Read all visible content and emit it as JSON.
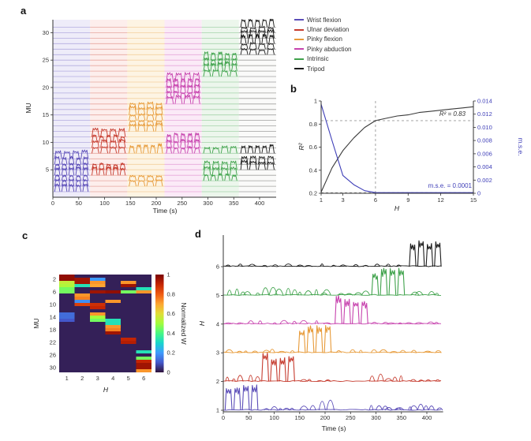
{
  "colors": {
    "wrist_flexion": "#5b4db8",
    "ulnar_deviation": "#c63b2e",
    "pinky_flexion": "#e79a38",
    "pinky_abduction": "#c743ae",
    "intrinsic": "#3fa24b",
    "tripod": "#1b1b1b",
    "mse_blue": "#3f3fb8",
    "axis": "#333333"
  },
  "chart_data": [
    {
      "id": "a",
      "type": "line",
      "panel_label": "a",
      "title": "",
      "xlabel": "Time (s)",
      "ylabel": "MU",
      "xticks": [
        0,
        50,
        100,
        150,
        200,
        250,
        300,
        350,
        400
      ],
      "yticks": [
        5,
        10,
        15,
        20,
        25,
        30
      ],
      "xlim": [
        0,
        432
      ],
      "mu_count": 31,
      "legend_position": "top-right-outside",
      "legend": [
        {
          "label": "Wrist flexion",
          "color": "#5b4db8"
        },
        {
          "label": "Ulnar deviation",
          "color": "#c63b2e"
        },
        {
          "label": "Pinky flexion",
          "color": "#e79a38"
        },
        {
          "label": "Pinky abduction",
          "color": "#c743ae"
        },
        {
          "label": "Intrinsic",
          "color": "#3fa24b"
        },
        {
          "label": "Tripod",
          "color": "#1b1b1b"
        }
      ],
      "segments": [
        {
          "gesture": "Wrist flexion",
          "t0": 0,
          "t1": 72,
          "color": "#5b4db8",
          "band": "#eeecf9",
          "active_mus": [
            1,
            2,
            3,
            4,
            5,
            6,
            7
          ]
        },
        {
          "gesture": "Ulnar deviation",
          "t0": 72,
          "t1": 144,
          "color": "#c63b2e",
          "band": "#fdeeec",
          "active_mus": [
            4,
            5,
            8,
            9,
            10,
            11
          ]
        },
        {
          "gesture": "Pinky flexion",
          "t0": 144,
          "t1": 216,
          "color": "#e79a38",
          "band": "#fdf4e3",
          "active_mus": [
            2,
            3,
            8,
            12,
            13,
            14,
            15,
            16
          ]
        },
        {
          "gesture": "Pinky abduction",
          "t0": 216,
          "t1": 288,
          "color": "#c743ae",
          "band": "#fbeaf7",
          "active_mus": [
            8,
            9,
            10,
            17,
            18,
            19,
            20,
            21
          ]
        },
        {
          "gesture": "Intrinsic",
          "t0": 288,
          "t1": 360,
          "color": "#3fa24b",
          "band": "#ecf6ec",
          "active_mus": [
            3,
            4,
            5,
            8,
            22,
            23,
            24,
            25
          ]
        },
        {
          "gesture": "Tripod",
          "t0": 360,
          "t1": 432,
          "color": "#1b1b1b",
          "band": "#fafaf9",
          "active_mus": [
            5,
            6,
            8,
            26,
            27,
            28,
            29,
            30,
            31
          ]
        }
      ]
    },
    {
      "id": "b",
      "type": "line",
      "panel_label": "b",
      "title": "",
      "xlabel": "H",
      "ylabel_left": "R²",
      "ylabel_right": "m.s.e.",
      "xticks": [
        1,
        3,
        6,
        9,
        12,
        15
      ],
      "yticks_left": [
        "0.2",
        "0.4",
        "0.6",
        "0.8",
        "1"
      ],
      "yticks_right": [
        "0",
        "0.002",
        "0.004",
        "0.006",
        "0.008",
        "0.010",
        "0.012",
        "0.014"
      ],
      "xlim": [
        1,
        15
      ],
      "ylim_left": [
        0.2,
        1
      ],
      "ylim_right": [
        0,
        0.014
      ],
      "x": [
        1,
        2,
        3,
        4,
        5,
        6,
        7,
        8,
        9,
        10,
        11,
        12,
        13,
        14,
        15
      ],
      "series": [
        {
          "name": "R²",
          "axis": "left",
          "color": "#3a3a3a",
          "values": [
            0.21,
            0.42,
            0.57,
            0.68,
            0.77,
            0.83,
            0.85,
            0.87,
            0.88,
            0.9,
            0.91,
            0.92,
            0.93,
            0.94,
            0.95
          ]
        },
        {
          "name": "m.s.e.",
          "axis": "right",
          "color": "#3f3fb8",
          "values": [
            0.0135,
            0.008,
            0.0027,
            0.0013,
            0.0004,
            0.0001,
            0.0001,
            0.0001,
            0.0001,
            0.0001,
            0.0001,
            0.0001,
            0.0001,
            0.0001,
            0.0001
          ]
        }
      ],
      "annotations": [
        {
          "text": "R² = 0.83",
          "color": "#3a3a3a"
        },
        {
          "text": "m.s.e. = 0.0001",
          "color": "#3f3fb8"
        }
      ],
      "dashed_lines": {
        "vline_H": 6,
        "hline_r2": 0.83,
        "hline_mse": 0.0001
      }
    },
    {
      "id": "c",
      "type": "heatmap",
      "panel_label": "c",
      "title": "",
      "xlabel": "H",
      "ylabel": "MU",
      "colorbar_label": "Normalized W",
      "xticks": [
        1,
        2,
        3,
        4,
        5,
        6
      ],
      "yticks": [
        2,
        6,
        10,
        14,
        18,
        22,
        26,
        30
      ],
      "colorbar_ticks": [
        "0",
        "0.2",
        "0.4",
        "0.6",
        "0.8",
        "1"
      ],
      "rows": 31,
      "cols": 6,
      "colormap": "turbo",
      "cells": [
        [
          1,
          1,
          0.97
        ],
        [
          2,
          1,
          0.97
        ],
        [
          3,
          1,
          0.55
        ],
        [
          4,
          1,
          0.52
        ],
        [
          5,
          1,
          0.45
        ],
        [
          6,
          1,
          0.45
        ],
        [
          13,
          1,
          0.13
        ],
        [
          14,
          1,
          0.13
        ],
        [
          15,
          1,
          0.1
        ],
        [
          2,
          2,
          0.95
        ],
        [
          3,
          2,
          0.95
        ],
        [
          4,
          2,
          0.33
        ],
        [
          7,
          2,
          0.72
        ],
        [
          8,
          2,
          0.75
        ],
        [
          9,
          2,
          0.18
        ],
        [
          10,
          2,
          0.85
        ],
        [
          2,
          3,
          0.2
        ],
        [
          3,
          3,
          0.72
        ],
        [
          4,
          3,
          0.7
        ],
        [
          6,
          3,
          0.95
        ],
        [
          10,
          3,
          0.88
        ],
        [
          11,
          3,
          0.9
        ],
        [
          13,
          3,
          0.72
        ],
        [
          14,
          3,
          0.5
        ],
        [
          15,
          3,
          0.45
        ],
        [
          6,
          4,
          0.97
        ],
        [
          9,
          4,
          0.72
        ],
        [
          15,
          4,
          0.33
        ],
        [
          16,
          4,
          0.33
        ],
        [
          17,
          4,
          0.72
        ],
        [
          18,
          4,
          0.75
        ],
        [
          19,
          4,
          0.95
        ],
        [
          3,
          5,
          0.72
        ],
        [
          4,
          5,
          0.95
        ],
        [
          6,
          5,
          0.45
        ],
        [
          21,
          5,
          0.9
        ],
        [
          22,
          5,
          0.92
        ],
        [
          5,
          6,
          0.33
        ],
        [
          6,
          6,
          0.72
        ],
        [
          25,
          6,
          0.33
        ],
        [
          27,
          6,
          0.45
        ],
        [
          28,
          6,
          0.9
        ],
        [
          29,
          6,
          0.95
        ],
        [
          30,
          6,
          0.95
        ],
        [
          31,
          6,
          0.72
        ]
      ]
    },
    {
      "id": "d",
      "type": "line",
      "panel_label": "d",
      "title": "",
      "xlabel": "Time (s)",
      "ylabel": "H",
      "xticks": [
        0,
        50,
        100,
        150,
        200,
        250,
        300,
        350,
        400
      ],
      "yticks": [
        1,
        2,
        3,
        4,
        5,
        6
      ],
      "xlim": [
        0,
        432
      ],
      "traces": [
        {
          "h": 1,
          "gesture": "Wrist flexion",
          "color": "#5b4db8",
          "burst": [
            2,
            70
          ],
          "minor": [
            [
              78,
              142,
              0.1,
              5
            ],
            [
              150,
              214,
              0.28,
              4
            ],
            [
              288,
              356,
              0.14,
              6
            ],
            [
              362,
              430,
              0.16,
              6
            ]
          ]
        },
        {
          "h": 2,
          "gesture": "Ulnar deviation",
          "color": "#c63b2e",
          "burst": [
            74,
            142
          ],
          "minor": [
            [
              2,
              70,
              0.18,
              5
            ],
            [
              146,
              214,
              0.06,
              4
            ],
            [
              288,
              356,
              0.2,
              5
            ],
            [
              362,
              430,
              0.1,
              4
            ]
          ]
        },
        {
          "h": 3,
          "gesture": "Pinky flexion",
          "color": "#e79a38",
          "burst": [
            146,
            214
          ],
          "minor": [
            [
              2,
              142,
              0.1,
              8
            ],
            [
              218,
              430,
              0.08,
              10
            ]
          ]
        },
        {
          "h": 4,
          "gesture": "Pinky abduction",
          "color": "#c743ae",
          "burst": [
            218,
            286
          ],
          "minor": [
            [
              2,
              214,
              0.09,
              10
            ],
            [
              290,
              430,
              0.07,
              8
            ]
          ]
        },
        {
          "h": 5,
          "gesture": "Intrinsic",
          "color": "#3fa24b",
          "burst": [
            290,
            358
          ],
          "minor": [
            [
              2,
              70,
              0.16,
              5
            ],
            [
              76,
              144,
              0.22,
              5
            ],
            [
              148,
              214,
              0.16,
              5
            ],
            [
              220,
              286,
              0.12,
              4
            ],
            [
              364,
              430,
              0.13,
              4
            ]
          ]
        },
        {
          "h": 6,
          "gesture": "Tripod",
          "color": "#1b1b1b",
          "burst": [
            364,
            430
          ],
          "minor": [
            [
              2,
              358,
              0.07,
              16
            ]
          ]
        }
      ]
    }
  ]
}
